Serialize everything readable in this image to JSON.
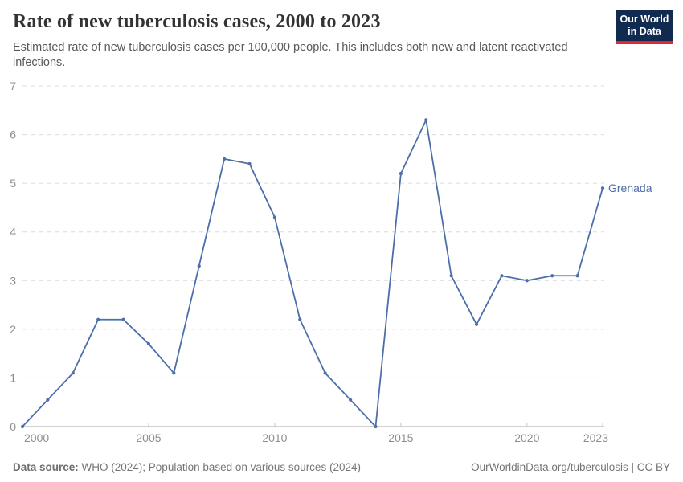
{
  "header": {
    "title": "Rate of new tuberculosis cases, 2000 to 2023",
    "subtitle": "Estimated rate of new tuberculosis cases per 100,000 people. This includes both new and latent reactivated infections.",
    "logo": {
      "line1": "Our World",
      "line2": "in Data",
      "bg_color": "#102a50",
      "accent_color": "#dc2a33"
    }
  },
  "chart_data": {
    "type": "line",
    "title": "Rate of new tuberculosis cases, 2000 to 2023",
    "x": [
      2000,
      2001,
      2002,
      2003,
      2004,
      2005,
      2006,
      2007,
      2008,
      2009,
      2010,
      2011,
      2012,
      2013,
      2014,
      2015,
      2016,
      2017,
      2018,
      2019,
      2020,
      2021,
      2022,
      2023
    ],
    "series": [
      {
        "name": "Grenada",
        "color": "#4C6EA9",
        "values": [
          0,
          0.55,
          1.1,
          2.2,
          2.2,
          1.7,
          1.1,
          3.3,
          5.5,
          5.4,
          4.3,
          2.2,
          1.1,
          0.55,
          0,
          5.2,
          6.3,
          3.1,
          2.1,
          3.1,
          3.0,
          3.1,
          3.1,
          4.9
        ]
      }
    ],
    "xlabel": "",
    "ylabel": "",
    "ylim": [
      0,
      7
    ],
    "yticks": [
      0,
      1,
      2,
      3,
      4,
      5,
      6,
      7
    ],
    "xticks": [
      2000,
      2005,
      2010,
      2015,
      2020,
      2023
    ],
    "grid": "horizontal-dashed",
    "legend_position": "line-end-label"
  },
  "footer": {
    "source_label": "Data source:",
    "source_text": " WHO (2024); Population based on various sources (2024)",
    "credit": "OurWorldinData.org/tuberculosis | CC BY"
  }
}
